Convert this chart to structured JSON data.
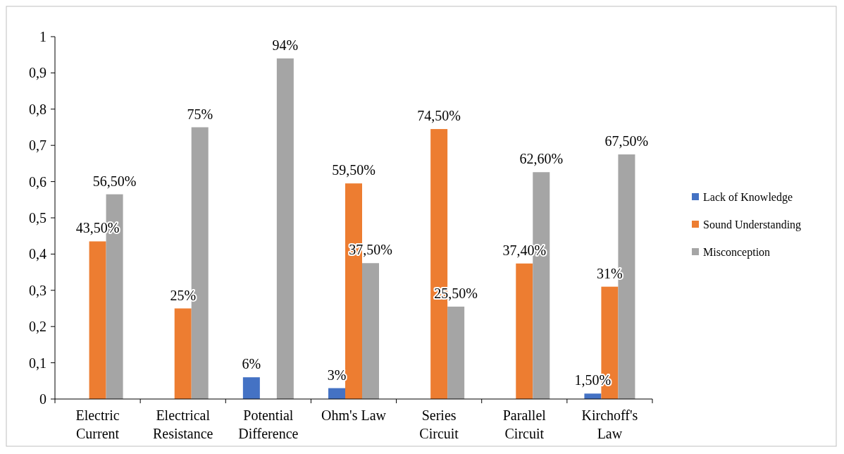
{
  "chart_data": {
    "type": "bar",
    "categories": [
      "Electric Current",
      "Electrical Resistance",
      "Potential Difference",
      "Ohm's Law",
      "Series Circuit",
      "Parallel Circuit",
      "Kirchoff's Law"
    ],
    "series": [
      {
        "name": "Lack of Knowledge",
        "color": "#4472c4",
        "values": [
          null,
          null,
          0.06,
          0.03,
          null,
          null,
          0.015
        ],
        "value_labels": [
          null,
          null,
          "6%",
          "3%",
          null,
          null,
          "1,50%"
        ]
      },
      {
        "name": "Sound Understanding",
        "color": "#ed7d31",
        "values": [
          0.435,
          0.25,
          null,
          0.595,
          0.745,
          0.374,
          0.31
        ],
        "value_labels": [
          "43,50%",
          "25%",
          null,
          "59,50%",
          "74,50%",
          "37,40%",
          "31%"
        ]
      },
      {
        "name": "Misconception",
        "color": "#a5a5a5",
        "values": [
          0.565,
          0.75,
          0.94,
          0.375,
          0.255,
          0.626,
          0.675
        ],
        "value_labels": [
          "56,50%",
          "75%",
          "94%",
          "37,50%",
          "25,50%",
          "62,60%",
          "67,50%"
        ]
      }
    ],
    "ylim": [
      0,
      1
    ],
    "yticks": [
      0,
      {
        "value": 0.1,
        "label": "0,1"
      },
      {
        "value": 0.2,
        "label": "0,2"
      },
      {
        "value": 0.3,
        "label": "0,3"
      },
      {
        "value": 0.4,
        "label": "0,4"
      },
      {
        "value": 0.5,
        "label": "0,5"
      },
      {
        "value": 0.6,
        "label": "0,6"
      },
      {
        "value": 0.7,
        "label": "0,7"
      },
      {
        "value": 0.8,
        "label": "0,8"
      },
      {
        "value": 0.9,
        "label": "0,9"
      },
      1
    ],
    "legend": "right",
    "grid": false
  }
}
